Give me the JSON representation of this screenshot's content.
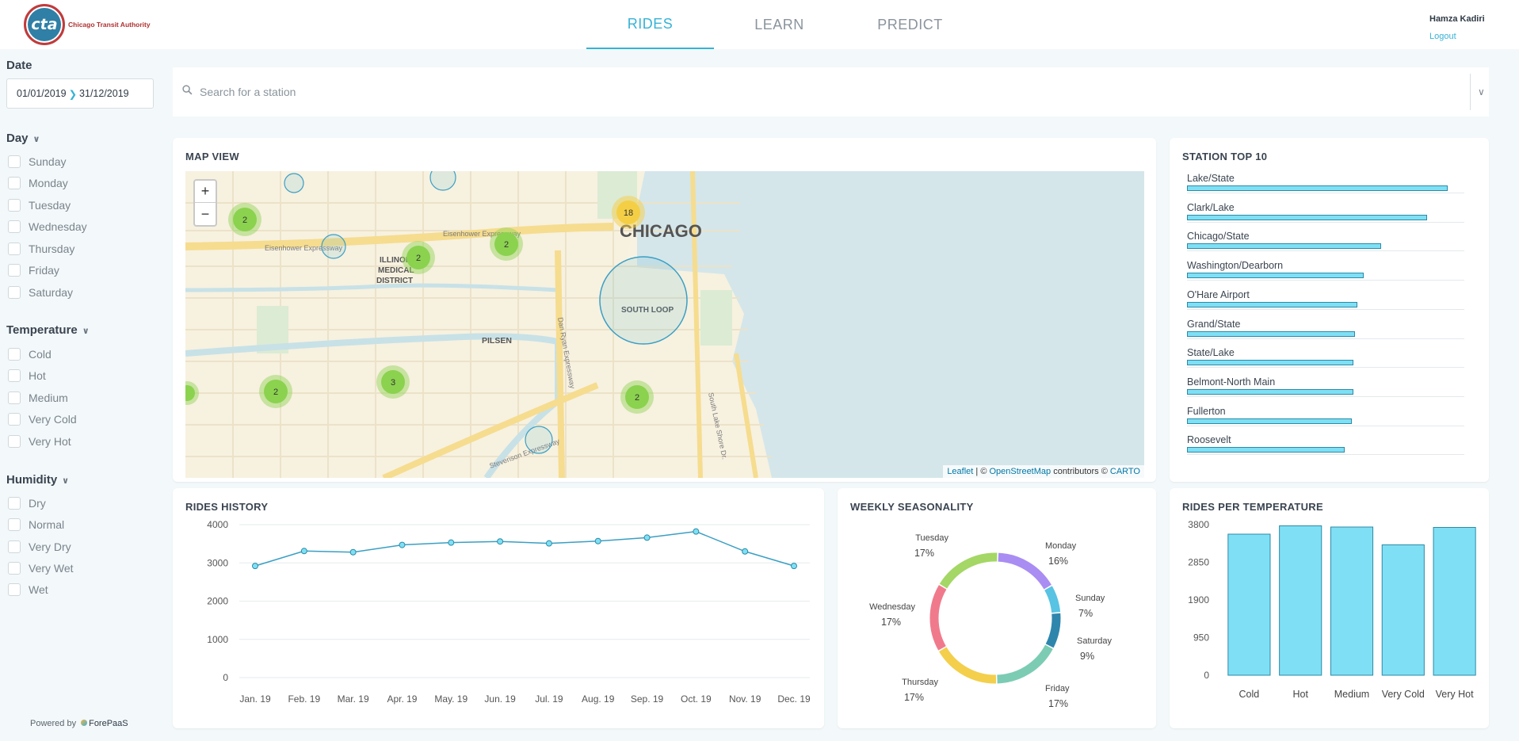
{
  "header": {
    "logo_text": "cta",
    "logo_caption": "Chicago Transit Authority",
    "tabs": [
      "RIDES",
      "LEARN",
      "PREDICT"
    ],
    "active_tab": "RIDES",
    "user_name": "Hamza Kadiri",
    "logout": "Logout"
  },
  "sidebar": {
    "date_title": "Date",
    "date_from": "01/01/2019",
    "date_to": "31/12/2019",
    "day_title": "Day",
    "days": [
      "Sunday",
      "Monday",
      "Tuesday",
      "Wednesday",
      "Thursday",
      "Friday",
      "Saturday"
    ],
    "temperature_title": "Temperature",
    "temperatures": [
      "Cold",
      "Hot",
      "Medium",
      "Very Cold",
      "Very Hot"
    ],
    "humidity_title": "Humidity",
    "humidities": [
      "Dry",
      "Normal",
      "Very Dry",
      "Very Wet",
      "Wet"
    ],
    "powered_by": "Powered by",
    "powered_brand": "ForePaaS"
  },
  "search": {
    "placeholder": "Search for a station"
  },
  "map": {
    "title": "MAP VIEW",
    "labels": {
      "chicago": "CHICAGO",
      "illinois": "ILLINOIS",
      "medical": "MEDICAL",
      "district": "DISTRICT",
      "south_loop": "SOUTH LOOP",
      "pilsen": "PILSEN",
      "eisenhower_1": "Eisenhower Expressway",
      "eisenhower_2": "Eisenhower Expressway",
      "dan_ryan": "Dan Ryan Expressway",
      "stevenson": "Stevenson Expressway",
      "lake_shore": "South Lake Shore Dr."
    },
    "clusters": [
      "2",
      "2",
      "2",
      "18",
      "2",
      "3",
      "2"
    ],
    "attribution": {
      "leaflet": "Leaflet",
      "sep": " | © ",
      "osm": "OpenStreetMap",
      "contrib": " contributors © ",
      "carto": "CARTO"
    }
  },
  "station_top": {
    "title": "STATION TOP 10",
    "items": [
      {
        "name": "Lake/State",
        "value": 0.9
      },
      {
        "name": "Clark/Lake",
        "value": 0.83
      },
      {
        "name": "Chicago/State",
        "value": 0.67
      },
      {
        "name": "Washington/Dearborn",
        "value": 0.61
      },
      {
        "name": "O'Hare Airport",
        "value": 0.59
      },
      {
        "name": "Grand/State",
        "value": 0.58
      },
      {
        "name": "State/Lake",
        "value": 0.575
      },
      {
        "name": "Belmont-North Main",
        "value": 0.575
      },
      {
        "name": "Fullerton",
        "value": 0.57
      },
      {
        "name": "Roosevelt",
        "value": 0.545
      }
    ]
  },
  "chart_data": [
    {
      "type": "line",
      "title": "RIDES HISTORY",
      "categories": [
        "Jan. 19",
        "Feb. 19",
        "Mar. 19",
        "Apr. 19",
        "May. 19",
        "Jun. 19",
        "Jul. 19",
        "Aug. 19",
        "Sep. 19",
        "Oct. 19",
        "Nov. 19",
        "Dec. 19"
      ],
      "values": [
        2920,
        3310,
        3280,
        3470,
        3530,
        3560,
        3510,
        3570,
        3660,
        3820,
        3300,
        2920
      ],
      "ylim": [
        0,
        4000
      ],
      "yticks": [
        "4000",
        "3000",
        "2000",
        "1000",
        "0"
      ]
    },
    {
      "type": "pie",
      "title": "WEEKLY SEASONALITY",
      "slices": [
        {
          "label": "Monday",
          "pct": "16%",
          "value": 16,
          "color": "#a98df2"
        },
        {
          "label": "Sunday",
          "pct": "7%",
          "value": 7,
          "color": "#58c3e3"
        },
        {
          "label": "Saturday",
          "pct": "9%",
          "value": 9,
          "color": "#2f86ad"
        },
        {
          "label": "Friday",
          "pct": "17%",
          "value": 17,
          "color": "#7cccb4"
        },
        {
          "label": "Thursday",
          "pct": "17%",
          "value": 17,
          "color": "#f3cf4c"
        },
        {
          "label": "Wednesday",
          "pct": "17%",
          "value": 17,
          "color": "#f07a8c"
        },
        {
          "label": "Tuesday",
          "pct": "17%",
          "value": 17,
          "color": "#a4d765"
        }
      ]
    },
    {
      "type": "bar",
      "title": "RIDES PER TEMPERATURE",
      "categories": [
        "Cold",
        "Hot",
        "Medium",
        "Very Cold",
        "Very Hot"
      ],
      "values": [
        3560,
        3770,
        3740,
        3290,
        3730
      ],
      "ylim": [
        0,
        3800
      ],
      "yticks": [
        "3800",
        "2850",
        "1900",
        "950",
        "0"
      ]
    }
  ]
}
